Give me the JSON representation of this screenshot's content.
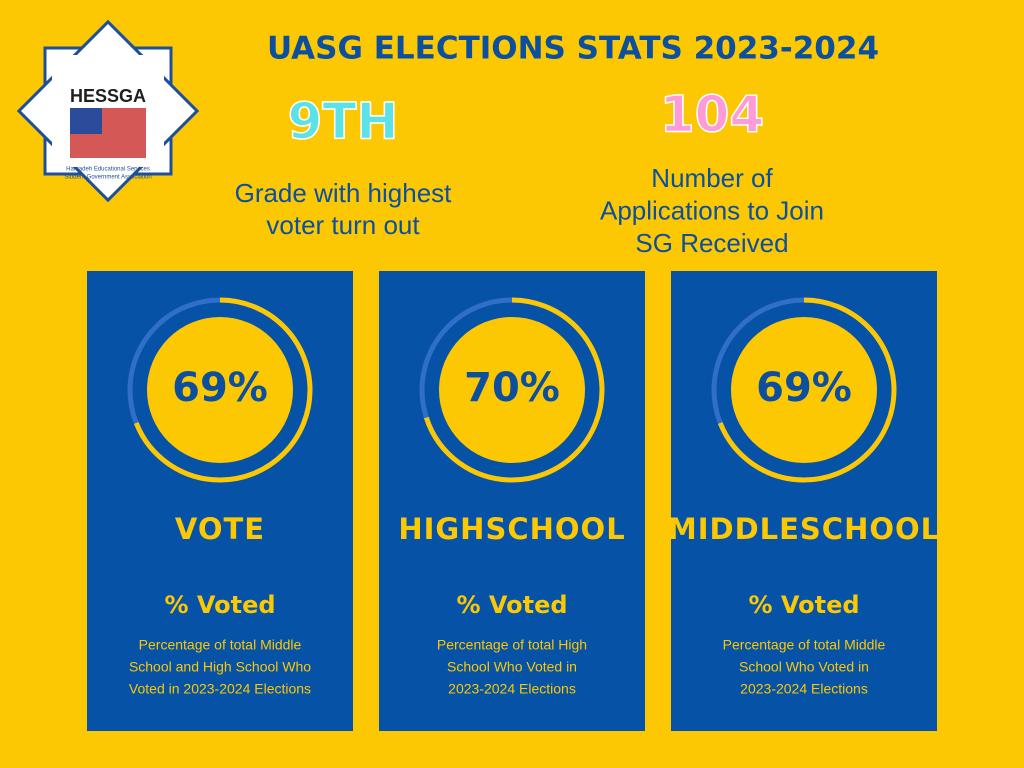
{
  "header": {
    "title": "UASG ELECTIONS STATS 2023-2024"
  },
  "logo": {
    "name": "HESSGA",
    "line1": "Hamadeh Educational Services",
    "line2": "Student Government Association"
  },
  "stats": [
    {
      "value": "9TH",
      "color": "#5ce1e6",
      "lines": [
        "Grade with highest",
        "voter turn out"
      ]
    },
    {
      "value": "104",
      "color": "#ff9bd8",
      "lines": [
        "Number of",
        "Applications to Join",
        "SG Received"
      ]
    }
  ],
  "cards": [
    {
      "value": 69,
      "value_label": "69%",
      "heading": "VOTE",
      "label": "% Voted",
      "lines": [
        "Percentage of total Middle",
        "School and High School Who",
        "Voted in 2023-2024 Elections"
      ]
    },
    {
      "value": 70,
      "value_label": "70%",
      "heading": "HIGHSCHOOL",
      "label": "% Voted",
      "lines": [
        "Percentage of total High",
        "School Who Voted in",
        "2023-2024 Elections"
      ]
    },
    {
      "value": 69,
      "value_label": "69%",
      "heading": "MIDDLESCHOOL",
      "label": "% Voted",
      "lines": [
        "Percentage of total Middle",
        "School Who Voted in",
        "2023-2024 Elections"
      ]
    }
  ]
}
